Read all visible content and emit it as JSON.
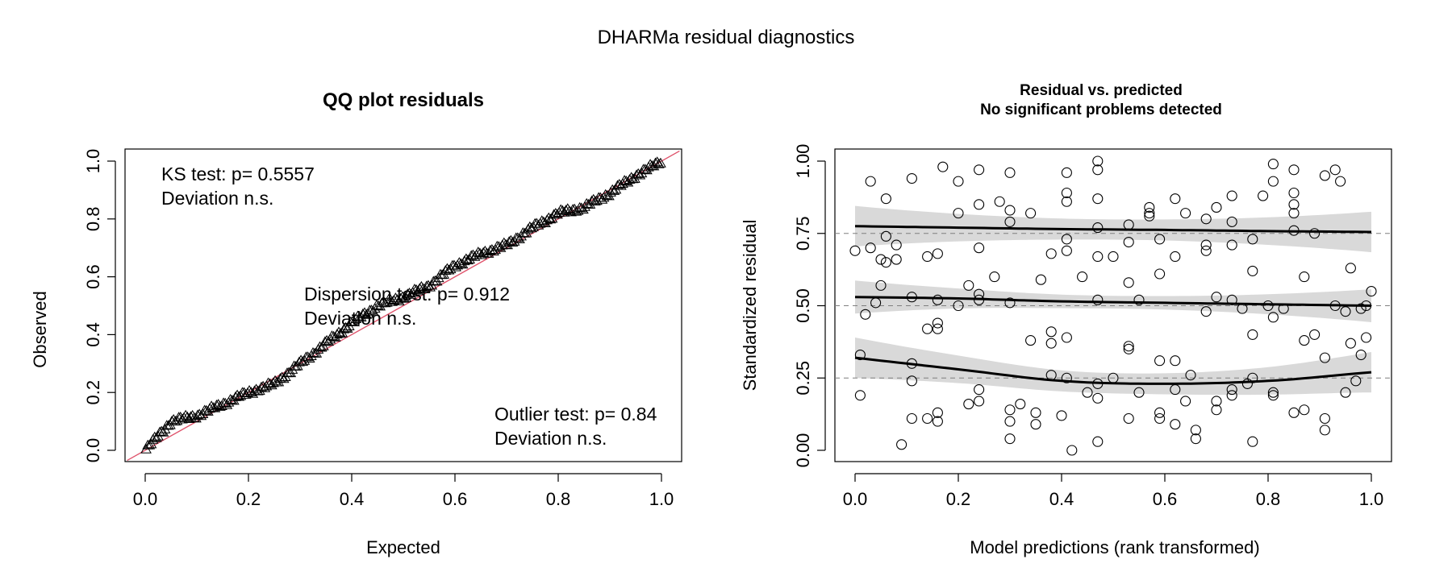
{
  "figure": {
    "title": "DHARMa residual diagnostics"
  },
  "chart_data": [
    {
      "type": "scatter",
      "title": "QQ plot residuals",
      "xlabel": "Expected",
      "ylabel": "Observed",
      "xlim": [
        0,
        1
      ],
      "ylim": [
        0,
        1
      ],
      "x_ticks": [
        "0.0",
        "0.2",
        "0.4",
        "0.6",
        "0.8",
        "1.0"
      ],
      "y_ticks": [
        "0.0",
        "0.2",
        "0.4",
        "0.6",
        "0.8",
        "1.0"
      ],
      "marker": "triangle",
      "reference_line": {
        "slope": 1,
        "intercept": 0,
        "color": "#DF536B"
      },
      "annotations": [
        {
          "line1": "KS test: p= 0.5557",
          "line2": "Deviation  n.s."
        },
        {
          "line1": "Dispersion test: p= 0.912",
          "line2": "Deviation  n.s."
        },
        {
          "line1": "Outlier test: p= 0.84",
          "line2": "Deviation  n.s."
        }
      ],
      "qq_shape": {
        "expected": [
          0.0,
          0.02,
          0.05,
          0.1,
          0.15,
          0.2,
          0.25,
          0.3,
          0.35,
          0.4,
          0.45,
          0.5,
          0.55,
          0.6,
          0.65,
          0.7,
          0.75,
          0.8,
          0.85,
          0.9,
          0.95,
          1.0
        ],
        "observed": [
          0.0,
          0.04,
          0.1,
          0.12,
          0.16,
          0.2,
          0.23,
          0.3,
          0.37,
          0.44,
          0.5,
          0.53,
          0.57,
          0.64,
          0.68,
          0.71,
          0.77,
          0.82,
          0.84,
          0.89,
          0.95,
          1.0
        ]
      }
    },
    {
      "type": "scatter",
      "title": "Residual vs. predicted",
      "subtitle": "No significant problems detected",
      "xlabel": "Model predictions (rank transformed)",
      "ylabel": "Standardized residual",
      "xlim": [
        0,
        1
      ],
      "ylim": [
        0,
        1
      ],
      "x_ticks": [
        "0.0",
        "0.2",
        "0.4",
        "0.6",
        "0.8",
        "1.0"
      ],
      "y_ticks": [
        "0.00",
        "0.25",
        "0.50",
        "0.75",
        "1.00"
      ],
      "marker": "open-circle",
      "reference_lines": [
        0.25,
        0.5,
        0.75
      ],
      "quantile_fits": [
        {
          "quantile": 0.25,
          "x": [
            0,
            0.2,
            0.4,
            0.6,
            0.8,
            1.0
          ],
          "y": [
            0.32,
            0.28,
            0.24,
            0.23,
            0.24,
            0.27
          ]
        },
        {
          "quantile": 0.5,
          "x": [
            0,
            0.2,
            0.4,
            0.6,
            0.8,
            1.0
          ],
          "y": [
            0.53,
            0.525,
            0.515,
            0.51,
            0.505,
            0.5
          ]
        },
        {
          "quantile": 0.75,
          "x": [
            0,
            0.2,
            0.4,
            0.6,
            0.8,
            1.0
          ],
          "y": [
            0.775,
            0.77,
            0.765,
            0.762,
            0.758,
            0.755
          ]
        }
      ],
      "points": [
        [
          0.0,
          0.69
        ],
        [
          0.01,
          0.33
        ],
        [
          0.01,
          0.19
        ],
        [
          0.02,
          0.47
        ],
        [
          0.03,
          0.93
        ],
        [
          0.03,
          0.7
        ],
        [
          0.04,
          0.51
        ],
        [
          0.05,
          0.57
        ],
        [
          0.05,
          0.66
        ],
        [
          0.06,
          0.74
        ],
        [
          0.06,
          0.65
        ],
        [
          0.06,
          0.87
        ],
        [
          0.08,
          0.71
        ],
        [
          0.08,
          0.66
        ],
        [
          0.09,
          0.02
        ],
        [
          0.11,
          0.94
        ],
        [
          0.11,
          0.53
        ],
        [
          0.11,
          0.3
        ],
        [
          0.11,
          0.24
        ],
        [
          0.11,
          0.11
        ],
        [
          0.14,
          0.67
        ],
        [
          0.14,
          0.42
        ],
        [
          0.14,
          0.11
        ],
        [
          0.16,
          0.68
        ],
        [
          0.16,
          0.52
        ],
        [
          0.16,
          0.44
        ],
        [
          0.16,
          0.42
        ],
        [
          0.16,
          0.13
        ],
        [
          0.16,
          0.1
        ],
        [
          0.17,
          0.98
        ],
        [
          0.2,
          0.93
        ],
        [
          0.2,
          0.82
        ],
        [
          0.2,
          0.5
        ],
        [
          0.22,
          0.57
        ],
        [
          0.22,
          0.16
        ],
        [
          0.24,
          0.97
        ],
        [
          0.24,
          0.85
        ],
        [
          0.24,
          0.7
        ],
        [
          0.24,
          0.54
        ],
        [
          0.24,
          0.52
        ],
        [
          0.24,
          0.17
        ],
        [
          0.24,
          0.21
        ],
        [
          0.27,
          0.6
        ],
        [
          0.28,
          0.86
        ],
        [
          0.3,
          0.96
        ],
        [
          0.3,
          0.83
        ],
        [
          0.3,
          0.79
        ],
        [
          0.3,
          0.51
        ],
        [
          0.3,
          0.14
        ],
        [
          0.3,
          0.1
        ],
        [
          0.3,
          0.04
        ],
        [
          0.32,
          0.16
        ],
        [
          0.34,
          0.82
        ],
        [
          0.34,
          0.38
        ],
        [
          0.35,
          0.13
        ],
        [
          0.35,
          0.09
        ],
        [
          0.36,
          0.59
        ],
        [
          0.38,
          0.68
        ],
        [
          0.38,
          0.41
        ],
        [
          0.38,
          0.37
        ],
        [
          0.38,
          0.26
        ],
        [
          0.4,
          0.12
        ],
        [
          0.41,
          0.96
        ],
        [
          0.41,
          0.89
        ],
        [
          0.41,
          0.86
        ],
        [
          0.41,
          0.73
        ],
        [
          0.41,
          0.69
        ],
        [
          0.41,
          0.39
        ],
        [
          0.41,
          0.25
        ],
        [
          0.42,
          0.0
        ],
        [
          0.44,
          0.6
        ],
        [
          0.45,
          0.2
        ],
        [
          0.47,
          1.0
        ],
        [
          0.47,
          0.97
        ],
        [
          0.47,
          0.87
        ],
        [
          0.47,
          0.77
        ],
        [
          0.47,
          0.67
        ],
        [
          0.47,
          0.52
        ],
        [
          0.47,
          0.23
        ],
        [
          0.47,
          0.18
        ],
        [
          0.47,
          0.03
        ],
        [
          0.5,
          0.67
        ],
        [
          0.5,
          0.25
        ],
        [
          0.53,
          0.78
        ],
        [
          0.53,
          0.72
        ],
        [
          0.53,
          0.58
        ],
        [
          0.53,
          0.36
        ],
        [
          0.53,
          0.35
        ],
        [
          0.53,
          0.11
        ],
        [
          0.55,
          0.52
        ],
        [
          0.55,
          0.2
        ],
        [
          0.57,
          0.84
        ],
        [
          0.57,
          0.82
        ],
        [
          0.57,
          0.81
        ],
        [
          0.59,
          0.73
        ],
        [
          0.59,
          0.61
        ],
        [
          0.59,
          0.31
        ],
        [
          0.59,
          0.13
        ],
        [
          0.59,
          0.11
        ],
        [
          0.62,
          0.87
        ],
        [
          0.62,
          0.67
        ],
        [
          0.62,
          0.31
        ],
        [
          0.62,
          0.21
        ],
        [
          0.62,
          0.09
        ],
        [
          0.64,
          0.82
        ],
        [
          0.64,
          0.17
        ],
        [
          0.65,
          0.26
        ],
        [
          0.66,
          0.07
        ],
        [
          0.66,
          0.04
        ],
        [
          0.68,
          0.8
        ],
        [
          0.68,
          0.71
        ],
        [
          0.68,
          0.69
        ],
        [
          0.68,
          0.48
        ],
        [
          0.7,
          0.84
        ],
        [
          0.7,
          0.53
        ],
        [
          0.7,
          0.17
        ],
        [
          0.7,
          0.14
        ],
        [
          0.73,
          0.88
        ],
        [
          0.73,
          0.79
        ],
        [
          0.73,
          0.71
        ],
        [
          0.73,
          0.52
        ],
        [
          0.73,
          0.21
        ],
        [
          0.73,
          0.19
        ],
        [
          0.75,
          0.49
        ],
        [
          0.76,
          0.23
        ],
        [
          0.77,
          0.73
        ],
        [
          0.77,
          0.62
        ],
        [
          0.77,
          0.4
        ],
        [
          0.77,
          0.25
        ],
        [
          0.77,
          0.03
        ],
        [
          0.79,
          0.88
        ],
        [
          0.8,
          0.5
        ],
        [
          0.81,
          0.99
        ],
        [
          0.81,
          0.93
        ],
        [
          0.81,
          0.46
        ],
        [
          0.81,
          0.2
        ],
        [
          0.81,
          0.19
        ],
        [
          0.83,
          0.49
        ],
        [
          0.85,
          0.97
        ],
        [
          0.85,
          0.89
        ],
        [
          0.85,
          0.85
        ],
        [
          0.85,
          0.82
        ],
        [
          0.85,
          0.76
        ],
        [
          0.85,
          0.13
        ],
        [
          0.87,
          0.6
        ],
        [
          0.87,
          0.38
        ],
        [
          0.87,
          0.14
        ],
        [
          0.89,
          0.75
        ],
        [
          0.89,
          0.4
        ],
        [
          0.91,
          0.95
        ],
        [
          0.91,
          0.32
        ],
        [
          0.91,
          0.11
        ],
        [
          0.91,
          0.07
        ],
        [
          0.93,
          0.97
        ],
        [
          0.93,
          0.5
        ],
        [
          0.94,
          0.93
        ],
        [
          0.95,
          0.48
        ],
        [
          0.95,
          0.2
        ],
        [
          0.96,
          0.63
        ],
        [
          0.96,
          0.37
        ],
        [
          0.97,
          0.24
        ],
        [
          0.98,
          0.49
        ],
        [
          0.98,
          0.33
        ],
        [
          0.99,
          0.39
        ],
        [
          0.99,
          0.5
        ],
        [
          1.0,
          0.55
        ]
      ]
    }
  ]
}
